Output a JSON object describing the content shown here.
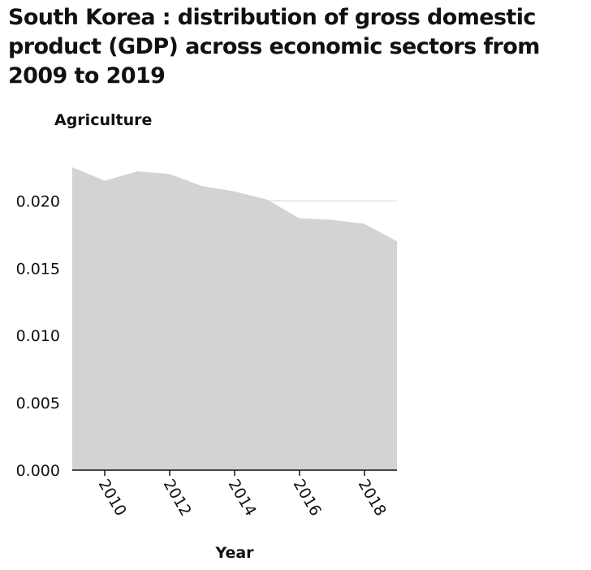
{
  "chart_data": {
    "type": "area",
    "title": "South Korea : distribution of gross domestic product (GDP) across economic sectors from 2009 to 2019",
    "xlabel": "Year",
    "ylabel": "Agriculture",
    "x": [
      2009,
      2010,
      2011,
      2012,
      2013,
      2014,
      2015,
      2016,
      2017,
      2018,
      2019
    ],
    "series": [
      {
        "values": [
          0.0225,
          0.0215,
          0.0222,
          0.022,
          0.0211,
          0.0207,
          0.0201,
          0.0187,
          0.0186,
          0.0183,
          0.017
        ]
      }
    ],
    "xlim": [
      2009,
      2019
    ],
    "ylim": [
      0,
      0.0225
    ],
    "xticks": [
      "2010",
      "2012",
      "2014",
      "2016",
      "2018"
    ],
    "yticks": [
      "0.000",
      "0.005",
      "0.010",
      "0.015",
      "0.020"
    ],
    "grid": true,
    "fill_color": "#d3d3d3",
    "grid_color": "#d6d6d6"
  }
}
